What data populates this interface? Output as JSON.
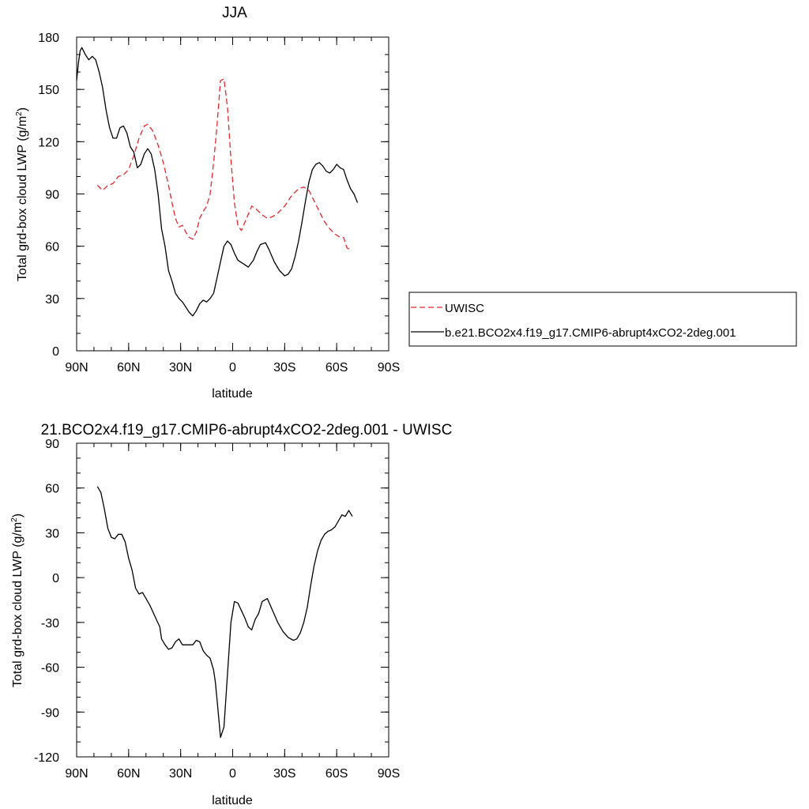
{
  "chart_data": [
    {
      "type": "line",
      "title": "JJA",
      "xlabel": "latitude",
      "ylabel_main": "Total grd-box cloud LWP (g/m",
      "ylabel_sup": "2",
      "ylabel_close": ")",
      "xlim": [
        90,
        -90
      ],
      "ylim": [
        0,
        180
      ],
      "xticks": [
        {
          "value": 90,
          "label": "90N"
        },
        {
          "value": 60,
          "label": "60N"
        },
        {
          "value": 30,
          "label": "30N"
        },
        {
          "value": 0,
          "label": "0"
        },
        {
          "value": -30,
          "label": "30S"
        },
        {
          "value": -60,
          "label": "60S"
        },
        {
          "value": -90,
          "label": "90S"
        }
      ],
      "yticks": [
        0,
        30,
        60,
        90,
        120,
        150,
        180
      ],
      "legend_position": "right",
      "series": [
        {
          "name": "UWISC",
          "color": "#e8262a",
          "style": "dashed",
          "points": [
            [
              78,
              95
            ],
            [
              75,
              92
            ],
            [
              72,
              95
            ],
            [
              69,
              96
            ],
            [
              66,
              100
            ],
            [
              63,
              101
            ],
            [
              60,
              104
            ],
            [
              57,
              112
            ],
            [
              54,
              122
            ],
            [
              51,
              129
            ],
            [
              49,
              130
            ],
            [
              46,
              126
            ],
            [
              43,
              118
            ],
            [
              40,
              108
            ],
            [
              37,
              95
            ],
            [
              35,
              85
            ],
            [
              33,
              76
            ],
            [
              31,
              71
            ],
            [
              29,
              72
            ],
            [
              27,
              68
            ],
            [
              25,
              65
            ],
            [
              23,
              64
            ],
            [
              21,
              68
            ],
            [
              19,
              76
            ],
            [
              17,
              80
            ],
            [
              15,
              83
            ],
            [
              13,
              90
            ],
            [
              11,
              108
            ],
            [
              9,
              130
            ],
            [
              7,
              155
            ],
            [
              5,
              156
            ],
            [
              3,
              140
            ],
            [
              1,
              110
            ],
            [
              -1,
              85
            ],
            [
              -3,
              72
            ],
            [
              -5,
              69
            ],
            [
              -8,
              76
            ],
            [
              -11,
              83
            ],
            [
              -14,
              81
            ],
            [
              -17,
              78
            ],
            [
              -20,
              76
            ],
            [
              -23,
              77
            ],
            [
              -26,
              79
            ],
            [
              -30,
              83
            ],
            [
              -34,
              89
            ],
            [
              -38,
              93
            ],
            [
              -41,
              94
            ],
            [
              -44,
              92
            ],
            [
              -47,
              86
            ],
            [
              -50,
              80
            ],
            [
              -53,
              74
            ],
            [
              -56,
              70
            ],
            [
              -59,
              67
            ],
            [
              -62,
              65
            ],
            [
              -64,
              65
            ],
            [
              -66,
              59
            ],
            [
              -68,
              58
            ]
          ]
        },
        {
          "name": "b.e21.BCO2x4.f19_g17.CMIP6-abrupt4xCO2-2deg.001",
          "color": "#000000",
          "style": "solid",
          "points": [
            [
              90,
              155
            ],
            [
              89,
              165
            ],
            [
              88,
              172
            ],
            [
              87,
              174
            ],
            [
              85,
              170
            ],
            [
              83,
              167
            ],
            [
              81,
              169
            ],
            [
              79,
              167
            ],
            [
              77,
              160
            ],
            [
              75,
              151
            ],
            [
              73,
              138
            ],
            [
              71,
              128
            ],
            [
              69,
              122
            ],
            [
              67,
              122
            ],
            [
              65,
              128
            ],
            [
              63,
              129
            ],
            [
              61,
              125
            ],
            [
              59,
              117
            ],
            [
              57,
              114
            ],
            [
              55,
              105
            ],
            [
              53,
              107
            ],
            [
              51,
              113
            ],
            [
              49,
              116
            ],
            [
              47,
              113
            ],
            [
              45,
              104
            ],
            [
              43,
              90
            ],
            [
              41,
              70
            ],
            [
              39,
              60
            ],
            [
              37,
              46
            ],
            [
              35,
              40
            ],
            [
              33,
              33
            ],
            [
              31,
              30
            ],
            [
              29,
              28
            ],
            [
              27,
              25
            ],
            [
              25,
              22
            ],
            [
              23,
              20
            ],
            [
              21,
              23
            ],
            [
              19,
              27
            ],
            [
              17,
              29
            ],
            [
              15,
              28
            ],
            [
              13,
              30
            ],
            [
              11,
              33
            ],
            [
              9,
              42
            ],
            [
              7,
              51
            ],
            [
              5,
              60
            ],
            [
              3,
              63
            ],
            [
              1,
              61
            ],
            [
              -1,
              56
            ],
            [
              -3,
              52
            ],
            [
              -6,
              50
            ],
            [
              -9,
              48
            ],
            [
              -12,
              52
            ],
            [
              -14,
              57
            ],
            [
              -16,
              61
            ],
            [
              -19,
              62
            ],
            [
              -21,
              58
            ],
            [
              -24,
              51
            ],
            [
              -27,
              46
            ],
            [
              -30,
              43
            ],
            [
              -32,
              44
            ],
            [
              -34,
              47
            ],
            [
              -36,
              54
            ],
            [
              -38,
              63
            ],
            [
              -40,
              74
            ],
            [
              -42,
              86
            ],
            [
              -44,
              97
            ],
            [
              -46,
              104
            ],
            [
              -48,
              107
            ],
            [
              -50,
              108
            ],
            [
              -52,
              106
            ],
            [
              -54,
              103
            ],
            [
              -56,
              102
            ],
            [
              -58,
              104
            ],
            [
              -60,
              107
            ],
            [
              -62,
              105
            ],
            [
              -64,
              104
            ],
            [
              -66,
              98
            ],
            [
              -68,
              93
            ],
            [
              -70,
              90
            ],
            [
              -72,
              85
            ]
          ]
        }
      ]
    },
    {
      "type": "line",
      "title": "21.BCO2x4.f19_g17.CMIP6-abrupt4xCO2-2deg.001 - UWISC",
      "xlabel": "latitude",
      "ylabel_main": "Total grd-box cloud LWP (g/m",
      "ylabel_sup": "2",
      "ylabel_close": ")",
      "xlim": [
        90,
        -90
      ],
      "ylim": [
        -120,
        90
      ],
      "xticks": [
        {
          "value": 90,
          "label": "90N"
        },
        {
          "value": 60,
          "label": "60N"
        },
        {
          "value": 30,
          "label": "30N"
        },
        {
          "value": 0,
          "label": "0"
        },
        {
          "value": -30,
          "label": "30S"
        },
        {
          "value": -60,
          "label": "60S"
        },
        {
          "value": -90,
          "label": "90S"
        }
      ],
      "yticks": [
        -120,
        -90,
        -60,
        -30,
        0,
        30,
        60,
        90
      ],
      "series": [
        {
          "color": "#000000",
          "style": "solid",
          "points": [
            [
              78,
              61
            ],
            [
              76,
              57
            ],
            [
              74,
              46
            ],
            [
              72,
              33
            ],
            [
              70,
              27
            ],
            [
              68,
              26
            ],
            [
              66,
              29
            ],
            [
              64,
              29
            ],
            [
              62,
              24
            ],
            [
              60,
              13
            ],
            [
              58,
              5
            ],
            [
              56,
              -7
            ],
            [
              54,
              -11
            ],
            [
              52,
              -10
            ],
            [
              50,
              -14
            ],
            [
              48,
              -18
            ],
            [
              46,
              -23
            ],
            [
              44,
              -28
            ],
            [
              42,
              -33
            ],
            [
              41,
              -41
            ],
            [
              39,
              -45
            ],
            [
              37,
              -48
            ],
            [
              35,
              -47
            ],
            [
              33,
              -43
            ],
            [
              31,
              -41
            ],
            [
              29,
              -45
            ],
            [
              27,
              -45
            ],
            [
              25,
              -45
            ],
            [
              23,
              -45
            ],
            [
              21,
              -42
            ],
            [
              19,
              -43
            ],
            [
              17,
              -49
            ],
            [
              15,
              -52
            ],
            [
              13,
              -54
            ],
            [
              11,
              -62
            ],
            [
              10,
              -70
            ],
            [
              9,
              -82
            ],
            [
              7,
              -107
            ],
            [
              5,
              -100
            ],
            [
              3,
              -65
            ],
            [
              1,
              -30
            ],
            [
              -1,
              -16
            ],
            [
              -3,
              -17
            ],
            [
              -5,
              -22
            ],
            [
              -7,
              -27
            ],
            [
              -9,
              -33
            ],
            [
              -11,
              -35
            ],
            [
              -13,
              -28
            ],
            [
              -15,
              -24
            ],
            [
              -17,
              -16
            ],
            [
              -20,
              -14
            ],
            [
              -23,
              -22
            ],
            [
              -26,
              -30
            ],
            [
              -29,
              -36
            ],
            [
              -32,
              -40
            ],
            [
              -35,
              -42
            ],
            [
              -37,
              -41
            ],
            [
              -39,
              -37
            ],
            [
              -41,
              -30
            ],
            [
              -43,
              -20
            ],
            [
              -45,
              -5
            ],
            [
              -47,
              8
            ],
            [
              -49,
              18
            ],
            [
              -51,
              25
            ],
            [
              -53,
              29
            ],
            [
              -55,
              31
            ],
            [
              -57,
              32
            ],
            [
              -59,
              34
            ],
            [
              -61,
              38
            ],
            [
              -63,
              42
            ],
            [
              -65,
              41
            ],
            [
              -67,
              45
            ],
            [
              -69,
              41
            ]
          ]
        }
      ]
    }
  ]
}
